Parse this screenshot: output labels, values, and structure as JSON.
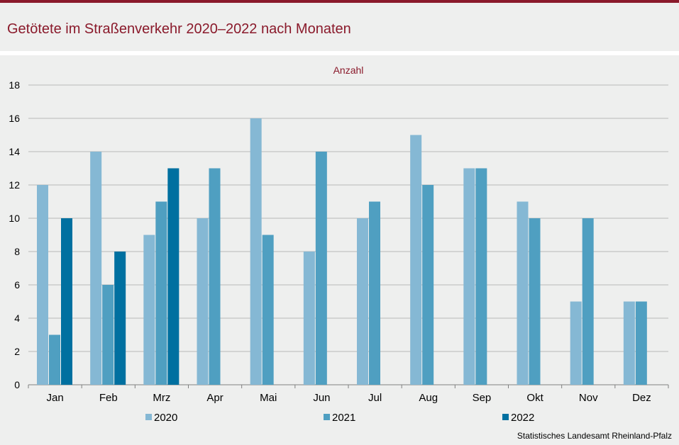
{
  "header": {
    "title": "Getötete im Straßenverkehr 2020–2022 nach Monaten"
  },
  "source": "Statistisches Landesamt  Rheinland-Pfalz",
  "colors": {
    "accent": "#8a1a2b",
    "series_2020": "#85b8d4",
    "series_2021": "#4f9fc1",
    "series_2022": "#0070a0",
    "grid": "#b8b8b8"
  },
  "chart_data": {
    "type": "bar",
    "title": "Getötete im Straßenverkehr 2020–2022 nach Monaten",
    "ylabel": "Anzahl",
    "xlabel": "",
    "ylim": [
      0,
      18
    ],
    "yticks": [
      "0",
      "2",
      "4",
      "6",
      "8",
      "10",
      "12",
      "14",
      "16",
      "18"
    ],
    "grid": true,
    "legend_position": "bottom",
    "categories": [
      "Jan",
      "Feb",
      "Mrz",
      "Apr",
      "Mai",
      "Jun",
      "Jul",
      "Aug",
      "Sep",
      "Okt",
      "Nov",
      "Dez"
    ],
    "series": [
      {
        "name": "2020",
        "values": [
          12,
          14,
          9,
          10,
          16,
          8,
          10,
          15,
          13,
          11,
          5,
          5
        ]
      },
      {
        "name": "2021",
        "values": [
          3,
          6,
          11,
          13,
          9,
          14,
          11,
          12,
          13,
          10,
          10,
          5
        ]
      },
      {
        "name": "2022",
        "values": [
          10,
          8,
          13,
          null,
          null,
          null,
          null,
          null,
          null,
          null,
          null,
          null
        ]
      }
    ]
  }
}
